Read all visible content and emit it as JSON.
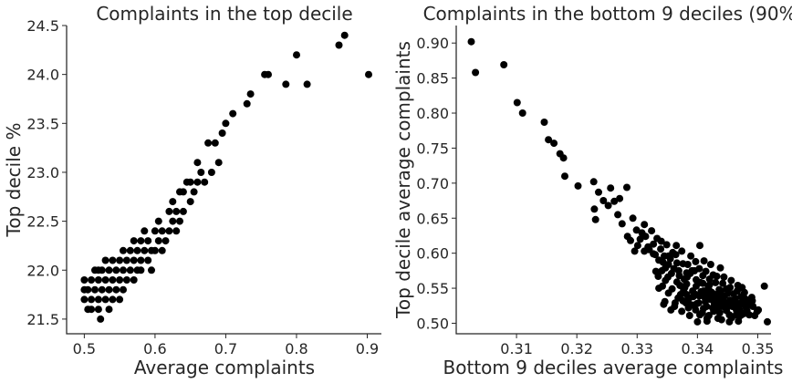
{
  "chart_data": [
    {
      "type": "scatter",
      "title": "Complaints in the top decile",
      "xlabel": "Average complaints",
      "ylabel": "Top decile %",
      "xlim": [
        0.475,
        0.92
      ],
      "ylim": [
        21.35,
        24.5
      ],
      "xticks": [
        0.5,
        0.6,
        0.7,
        0.8,
        0.9
      ],
      "xtick_labels": [
        "0.5",
        "0.6",
        "0.7",
        "0.8",
        "0.9"
      ],
      "yticks": [
        21.5,
        22.0,
        22.5,
        23.0,
        23.5,
        24.0,
        24.5
      ],
      "ytick_labels": [
        "21.5",
        "22.0",
        "22.5",
        "23.0",
        "23.5",
        "24.0",
        "24.5"
      ],
      "grid": false,
      "marker_color": "#000000",
      "points": [
        [
          0.5,
          21.7
        ],
        [
          0.5,
          21.8
        ],
        [
          0.5,
          21.9
        ],
        [
          0.505,
          21.6
        ],
        [
          0.505,
          21.8
        ],
        [
          0.51,
          21.6
        ],
        [
          0.51,
          21.7
        ],
        [
          0.51,
          21.9
        ],
        [
          0.515,
          21.8
        ],
        [
          0.515,
          22.0
        ],
        [
          0.52,
          21.6
        ],
        [
          0.52,
          21.7
        ],
        [
          0.52,
          21.9
        ],
        [
          0.52,
          22.0
        ],
        [
          0.523,
          21.5
        ],
        [
          0.525,
          21.8
        ],
        [
          0.525,
          22.0
        ],
        [
          0.53,
          21.7
        ],
        [
          0.53,
          21.9
        ],
        [
          0.53,
          22.1
        ],
        [
          0.535,
          21.6
        ],
        [
          0.535,
          21.8
        ],
        [
          0.535,
          22.0
        ],
        [
          0.54,
          21.7
        ],
        [
          0.54,
          21.9
        ],
        [
          0.54,
          22.1
        ],
        [
          0.545,
          21.8
        ],
        [
          0.545,
          22.0
        ],
        [
          0.55,
          21.7
        ],
        [
          0.55,
          21.9
        ],
        [
          0.55,
          22.1
        ],
        [
          0.555,
          21.8
        ],
        [
          0.555,
          22.0
        ],
        [
          0.555,
          22.2
        ],
        [
          0.56,
          21.9
        ],
        [
          0.56,
          22.1
        ],
        [
          0.565,
          22.0
        ],
        [
          0.565,
          22.2
        ],
        [
          0.57,
          21.9
        ],
        [
          0.57,
          22.1
        ],
        [
          0.57,
          22.3
        ],
        [
          0.575,
          22.0
        ],
        [
          0.575,
          22.2
        ],
        [
          0.58,
          22.0
        ],
        [
          0.58,
          22.1
        ],
        [
          0.58,
          22.3
        ],
        [
          0.585,
          22.2
        ],
        [
          0.585,
          22.4
        ],
        [
          0.59,
          22.1
        ],
        [
          0.59,
          22.3
        ],
        [
          0.595,
          22.0
        ],
        [
          0.595,
          22.2
        ],
        [
          0.6,
          22.2
        ],
        [
          0.6,
          22.4
        ],
        [
          0.605,
          22.3
        ],
        [
          0.605,
          22.5
        ],
        [
          0.61,
          22.2
        ],
        [
          0.61,
          22.4
        ],
        [
          0.615,
          22.3
        ],
        [
          0.62,
          22.4
        ],
        [
          0.62,
          22.6
        ],
        [
          0.625,
          22.5
        ],
        [
          0.625,
          22.7
        ],
        [
          0.63,
          22.4
        ],
        [
          0.63,
          22.6
        ],
        [
          0.635,
          22.5
        ],
        [
          0.635,
          22.8
        ],
        [
          0.64,
          22.6
        ],
        [
          0.64,
          22.8
        ],
        [
          0.645,
          22.9
        ],
        [
          0.65,
          22.7
        ],
        [
          0.65,
          22.9
        ],
        [
          0.655,
          22.8
        ],
        [
          0.66,
          22.9
        ],
        [
          0.66,
          23.1
        ],
        [
          0.665,
          23.0
        ],
        [
          0.67,
          22.9
        ],
        [
          0.675,
          23.3
        ],
        [
          0.68,
          23.0
        ],
        [
          0.685,
          23.3
        ],
        [
          0.69,
          23.1
        ],
        [
          0.695,
          23.4
        ],
        [
          0.7,
          23.5
        ],
        [
          0.71,
          23.6
        ],
        [
          0.73,
          23.7
        ],
        [
          0.735,
          23.8
        ],
        [
          0.755,
          24.0
        ],
        [
          0.76,
          24.0
        ],
        [
          0.785,
          23.9
        ],
        [
          0.8,
          24.2
        ],
        [
          0.815,
          23.9
        ],
        [
          0.86,
          24.3
        ],
        [
          0.868,
          24.4
        ],
        [
          0.902,
          24.0
        ]
      ]
    },
    {
      "type": "scatter",
      "title": "Complaints in the bottom 9 deciles (90%)",
      "xlabel": "Bottom 9 deciles average complaints",
      "ylabel": "Top decile average complaints",
      "xlim": [
        0.3,
        0.3522
      ],
      "ylim": [
        0.485,
        0.925
      ],
      "xticks": [
        0.31,
        0.32,
        0.33,
        0.34,
        0.35
      ],
      "xtick_labels": [
        "0.31",
        "0.32",
        "0.33",
        "0.34",
        "0.35"
      ],
      "yticks": [
        0.5,
        0.55,
        0.6,
        0.65,
        0.7,
        0.75,
        0.8,
        0.85,
        0.9
      ],
      "ytick_labels": [
        "0.50",
        "0.55",
        "0.60",
        "0.65",
        "0.70",
        "0.75",
        "0.80",
        "0.85",
        "0.90"
      ],
      "grid": false,
      "marker_color": "#000000",
      "points": [
        [
          0.3025,
          0.902
        ],
        [
          0.3032,
          0.858
        ],
        [
          0.3079,
          0.869
        ],
        [
          0.3101,
          0.815
        ],
        [
          0.311,
          0.8
        ],
        [
          0.3146,
          0.787
        ],
        [
          0.3153,
          0.762
        ],
        [
          0.3162,
          0.757
        ],
        [
          0.3172,
          0.742
        ],
        [
          0.3178,
          0.736
        ],
        [
          0.318,
          0.71
        ],
        [
          0.3202,
          0.696
        ],
        [
          0.3228,
          0.702
        ],
        [
          0.3236,
          0.687
        ],
        [
          0.3244,
          0.675
        ],
        [
          0.3256,
          0.693
        ],
        [
          0.3262,
          0.674
        ],
        [
          0.3271,
          0.678
        ],
        [
          0.3283,
          0.694
        ],
        [
          0.3229,
          0.663
        ],
        [
          0.3231,
          0.648
        ],
        [
          0.3252,
          0.668
        ],
        [
          0.3268,
          0.655
        ],
        [
          0.3275,
          0.642
        ],
        [
          0.3284,
          0.624
        ],
        [
          0.3293,
          0.65
        ],
        [
          0.3299,
          0.633
        ],
        [
          0.3305,
          0.62
        ],
        [
          0.3312,
          0.641
        ],
        [
          0.3318,
          0.609
        ],
        [
          0.3324,
          0.632
        ],
        [
          0.333,
          0.598
        ],
        [
          0.3333,
          0.621
        ],
        [
          0.3339,
          0.606
        ],
        [
          0.3343,
          0.587
        ],
        [
          0.3349,
          0.612
        ],
        [
          0.3355,
          0.592
        ],
        [
          0.3361,
          0.578
        ],
        [
          0.3364,
          0.598
        ],
        [
          0.337,
          0.568
        ],
        [
          0.3376,
          0.585
        ],
        [
          0.3382,
          0.556
        ],
        [
          0.3388,
          0.571
        ],
        [
          0.3392,
          0.546
        ],
        [
          0.3398,
          0.562
        ],
        [
          0.3403,
          0.539
        ],
        [
          0.3409,
          0.557
        ],
        [
          0.3413,
          0.531
        ],
        [
          0.3419,
          0.548
        ],
        [
          0.3425,
          0.522
        ],
        [
          0.3431,
          0.541
        ],
        [
          0.3437,
          0.515
        ],
        [
          0.3441,
          0.533
        ],
        [
          0.3447,
          0.525
        ],
        [
          0.3453,
          0.512
        ],
        [
          0.3459,
          0.529
        ],
        [
          0.3465,
          0.518
        ],
        [
          0.3471,
          0.526
        ],
        [
          0.3478,
          0.514
        ],
        [
          0.3331,
          0.574
        ],
        [
          0.3342,
          0.553
        ],
        [
          0.3351,
          0.566
        ],
        [
          0.3358,
          0.549
        ],
        [
          0.3366,
          0.559
        ],
        [
          0.3372,
          0.541
        ],
        [
          0.3379,
          0.551
        ],
        [
          0.3385,
          0.534
        ],
        [
          0.3391,
          0.526
        ],
        [
          0.3397,
          0.519
        ],
        [
          0.3404,
          0.512
        ],
        [
          0.341,
          0.521
        ],
        [
          0.3416,
          0.507
        ],
        [
          0.3422,
          0.534
        ],
        [
          0.3428,
          0.528
        ],
        [
          0.3434,
          0.507
        ],
        [
          0.3439,
          0.546
        ],
        [
          0.3445,
          0.539
        ],
        [
          0.3451,
          0.543
        ],
        [
          0.3457,
          0.508
        ],
        [
          0.3463,
          0.535
        ],
        [
          0.3469,
          0.509
        ],
        [
          0.3475,
          0.531
        ],
        [
          0.3481,
          0.522
        ],
        [
          0.3486,
          0.512
        ],
        [
          0.3492,
          0.524
        ],
        [
          0.3499,
          0.517
        ],
        [
          0.3346,
          0.531
        ],
        [
          0.3352,
          0.543
        ],
        [
          0.3362,
          0.524
        ],
        [
          0.3368,
          0.536
        ],
        [
          0.3374,
          0.517
        ],
        [
          0.3381,
          0.529
        ],
        [
          0.3387,
          0.511
        ],
        [
          0.3393,
          0.538
        ],
        [
          0.3399,
          0.528
        ],
        [
          0.3406,
          0.545
        ],
        [
          0.3412,
          0.537
        ],
        [
          0.3418,
          0.552
        ],
        [
          0.3424,
          0.544
        ],
        [
          0.343,
          0.558
        ],
        [
          0.3436,
          0.548
        ],
        [
          0.3442,
          0.557
        ],
        [
          0.3448,
          0.549
        ],
        [
          0.3454,
          0.551
        ],
        [
          0.346,
          0.542
        ],
        [
          0.3466,
          0.546
        ],
        [
          0.3472,
          0.538
        ],
        [
          0.3478,
          0.544
        ],
        [
          0.3484,
          0.532
        ],
        [
          0.349,
          0.537
        ],
        [
          0.3403,
          0.578
        ],
        [
          0.3409,
          0.568
        ],
        [
          0.3397,
          0.588
        ],
        [
          0.3389,
          0.596
        ],
        [
          0.3404,
          0.611
        ],
        [
          0.3414,
          0.574
        ],
        [
          0.342,
          0.563
        ],
        [
          0.3426,
          0.569
        ],
        [
          0.3411,
          0.589
        ],
        [
          0.3422,
          0.584
        ],
        [
          0.3432,
          0.567
        ],
        [
          0.3444,
          0.566
        ],
        [
          0.3456,
          0.561
        ],
        [
          0.3467,
          0.554
        ],
        [
          0.3474,
          0.551
        ],
        [
          0.3438,
          0.579
        ],
        [
          0.3395,
          0.575
        ],
        [
          0.3383,
          0.566
        ],
        [
          0.3374,
          0.603
        ],
        [
          0.3365,
          0.611
        ],
        [
          0.3359,
          0.601
        ],
        [
          0.3352,
          0.584
        ],
        [
          0.3345,
          0.596
        ],
        [
          0.3336,
          0.59
        ],
        [
          0.3327,
          0.599
        ],
        [
          0.332,
          0.605
        ],
        [
          0.3314,
          0.624
        ],
        [
          0.3327,
          0.613
        ],
        [
          0.334,
          0.617
        ],
        [
          0.3308,
          0.629
        ],
        [
          0.3301,
          0.611
        ],
        [
          0.3296,
          0.603
        ],
        [
          0.3289,
          0.618
        ],
        [
          0.3312,
          0.603
        ],
        [
          0.3341,
          0.575
        ],
        [
          0.3335,
          0.567
        ],
        [
          0.3347,
          0.561
        ],
        [
          0.3357,
          0.571
        ],
        [
          0.3371,
          0.554
        ],
        [
          0.3377,
          0.547
        ],
        [
          0.3384,
          0.584
        ],
        [
          0.3391,
          0.575
        ],
        [
          0.3347,
          0.579
        ],
        [
          0.3336,
          0.55
        ],
        [
          0.3344,
          0.527
        ],
        [
          0.3356,
          0.519
        ],
        [
          0.3363,
          0.529
        ],
        [
          0.3376,
          0.532
        ],
        [
          0.3382,
          0.541
        ],
        [
          0.3385,
          0.522
        ],
        [
          0.3395,
          0.542
        ],
        [
          0.3402,
          0.529
        ],
        [
          0.3408,
          0.515
        ],
        [
          0.3415,
          0.524
        ],
        [
          0.3419,
          0.511
        ],
        [
          0.3427,
          0.517
        ],
        [
          0.3433,
          0.522
        ],
        [
          0.3435,
          0.531
        ],
        [
          0.3442,
          0.524
        ],
        [
          0.3448,
          0.518
        ],
        [
          0.3454,
          0.533
        ],
        [
          0.3458,
          0.524
        ],
        [
          0.3464,
          0.512
        ],
        [
          0.347,
          0.519
        ],
        [
          0.3476,
          0.527
        ],
        [
          0.3482,
          0.518
        ],
        [
          0.3495,
          0.511
        ],
        [
          0.3501,
          0.519
        ],
        [
          0.3352,
          0.596
        ],
        [
          0.3366,
          0.586
        ],
        [
          0.3369,
          0.575
        ],
        [
          0.3378,
          0.563
        ],
        [
          0.3382,
          0.572
        ],
        [
          0.3398,
          0.553
        ],
        [
          0.3405,
          0.558
        ],
        [
          0.341,
          0.546
        ],
        [
          0.3416,
          0.541
        ],
        [
          0.342,
          0.555
        ],
        [
          0.3426,
          0.539
        ],
        [
          0.3432,
          0.533
        ],
        [
          0.3439,
          0.537
        ],
        [
          0.3445,
          0.53
        ],
        [
          0.3451,
          0.524
        ],
        [
          0.3457,
          0.531
        ],
        [
          0.3463,
          0.522
        ],
        [
          0.3469,
          0.528
        ],
        [
          0.3473,
          0.512
        ],
        [
          0.3479,
          0.535
        ],
        [
          0.3485,
          0.527
        ],
        [
          0.3491,
          0.532
        ],
        [
          0.3511,
          0.553
        ],
        [
          0.3516,
          0.502
        ],
        [
          0.34,
          0.502
        ],
        [
          0.3416,
          0.503
        ],
        [
          0.344,
          0.505
        ],
        [
          0.3453,
          0.502
        ],
        [
          0.3468,
          0.503
        ]
      ]
    }
  ]
}
